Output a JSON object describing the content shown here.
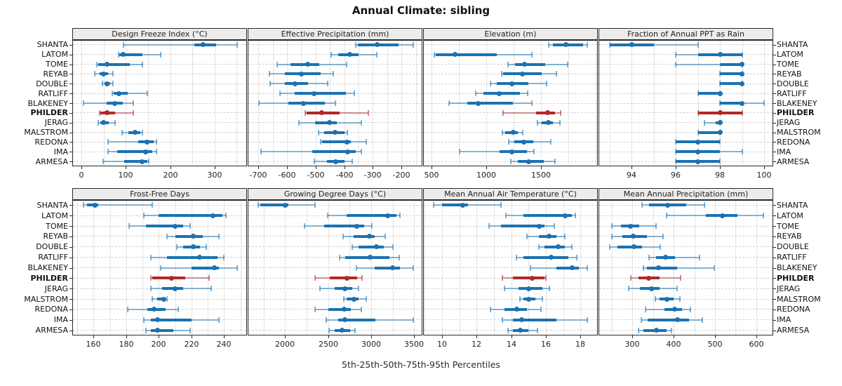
{
  "title": "Annual Climate: sibling",
  "xlabel": "5th-25th-50th-75th-95th Percentiles",
  "colors": {
    "series": "#1b72b2",
    "highlight": "#b02828",
    "strip_bg": "#ececec",
    "panel_border": "#2a2a2a",
    "grid": "#d2d2d2",
    "text": "#222222"
  },
  "stations": [
    "SHANTA",
    "LATOM",
    "TOME",
    "REYAB",
    "DOUBLE",
    "RATLIFF",
    "BLAKENEY",
    "PHILDER",
    "JERAG",
    "MALSTROM",
    "REDONA",
    "IMA",
    "ARMESA"
  ],
  "highlight_station": "PHILDER",
  "percentiles": [
    "5th",
    "25th",
    "50th",
    "75th",
    "95th"
  ],
  "chart_data": {
    "type": "dot-whisker percentile trellis (5-25-50-75-95)",
    "layout": "2 rows x 4 columns, shared station y-axis, grid on, station labels on both sides",
    "panels": [
      {
        "title": "Design Freeze Index (°C)",
        "ticks": [
          0,
          100,
          200,
          300
        ],
        "minor_step": 50,
        "range": [
          -21,
          373
        ],
        "values": {
          "SHANTA": [
            95,
            254,
            274,
            304,
            351
          ],
          "LATOM": [
            83,
            85,
            93,
            138,
            178
          ],
          "TOME": [
            35,
            38,
            58,
            109,
            137
          ],
          "REYAB": [
            29,
            41,
            50,
            59,
            71
          ],
          "DOUBLE": [
            47,
            51,
            58,
            65,
            70
          ],
          "RATLIFF": [
            69,
            72,
            84,
            104,
            149
          ],
          "BLAKENEY": [
            5,
            56,
            75,
            93,
            117
          ],
          "PHILDER": [
            40,
            43,
            57,
            75,
            116
          ],
          "JERAG": [
            37,
            42,
            50,
            62,
            76
          ],
          "MALSTROM": [
            91,
            105,
            121,
            133,
            137
          ],
          "REDONA": [
            60,
            128,
            148,
            162,
            169
          ],
          "IMA": [
            59,
            80,
            145,
            159,
            169
          ],
          "ARMESA": [
            49,
            96,
            137,
            149,
            151
          ]
        }
      },
      {
        "title": "Effective Precipitation (mm)",
        "ticks": [
          -700,
          -600,
          -500,
          -400,
          -300,
          -200
        ],
        "minor_step": 50,
        "range": [
          -737,
          -127
        ],
        "values": {
          "SHANTA": [
            -360,
            -352,
            -284,
            -210,
            -160
          ],
          "LATOM": [
            -445,
            -420,
            -380,
            -350,
            -287
          ],
          "TOME": [
            -633,
            -588,
            -528,
            -486,
            -392
          ],
          "REYAB": [
            -662,
            -608,
            -550,
            -482,
            -439
          ],
          "DOUBLE": [
            -658,
            -606,
            -572,
            -527,
            -457
          ],
          "RATLIFF": [
            -625,
            -572,
            -505,
            -393,
            -365
          ],
          "BLAKENEY": [
            -698,
            -594,
            -543,
            -467,
            -430
          ],
          "PHILDER": [
            -537,
            -531,
            -479,
            -417,
            -316
          ],
          "JERAG": [
            -559,
            -502,
            -452,
            -425,
            -339
          ],
          "MALSTROM": [
            -490,
            -470,
            -433,
            -400,
            -388
          ],
          "REDONA": [
            -482,
            -477,
            -390,
            -376,
            -322
          ],
          "IMA": [
            -690,
            -512,
            -389,
            -359,
            -340
          ],
          "ARMESA": [
            -504,
            -461,
            -430,
            -400,
            -373
          ]
        }
      },
      {
        "title": "Elevation (m)",
        "ticks": [
          500,
          1000,
          1500
        ],
        "minor_step": 250,
        "range": [
          420,
          2020
        ],
        "values": {
          "SHANTA": [
            1570,
            1610,
            1730,
            1885,
            1925
          ],
          "LATOM": [
            520,
            535,
            710,
            1095,
            1415
          ],
          "TOME": [
            1200,
            1260,
            1350,
            1535,
            1745
          ],
          "REYAB": [
            1140,
            1155,
            1330,
            1505,
            1640
          ],
          "DOUBLE": [
            1035,
            1095,
            1233,
            1387,
            1553
          ],
          "RATLIFF": [
            900,
            975,
            1120,
            1310,
            1375
          ],
          "BLAKENEY": [
            655,
            827,
            923,
            1245,
            1415
          ],
          "PHILDER": [
            1150,
            1457,
            1558,
            1628,
            1680
          ],
          "JERAG": [
            1465,
            1505,
            1565,
            1610,
            1670
          ],
          "MALSTROM": [
            1147,
            1173,
            1244,
            1286,
            1333
          ],
          "REDONA": [
            1205,
            1255,
            1345,
            1430,
            1590
          ],
          "IMA": [
            755,
            1120,
            1233,
            1372,
            1436
          ],
          "ARMESA": [
            1226,
            1286,
            1387,
            1526,
            1628
          ]
        }
      },
      {
        "title": "Fraction of Annual PPT as Rain",
        "ticks": [
          94,
          96,
          98,
          100
        ],
        "minor_step": 1,
        "range": [
          92.5,
          100.4
        ],
        "values": {
          "SHANTA": [
            93,
            93,
            94,
            95,
            97
          ],
          "LATOM": [
            96,
            97,
            98,
            99,
            99
          ],
          "TOME": [
            96,
            98,
            99,
            99,
            99
          ],
          "REYAB": [
            98,
            98,
            99,
            99,
            99
          ],
          "DOUBLE": [
            98,
            98,
            99,
            99,
            99
          ],
          "RATLIFF": [
            97,
            97,
            98,
            98,
            98
          ],
          "BLAKENEY": [
            98,
            98,
            99,
            99,
            100
          ],
          "PHILDER": [
            97,
            97,
            98,
            99,
            99
          ],
          "JERAG": [
            97.3,
            97.8,
            98,
            98,
            98
          ],
          "MALSTROM": [
            97,
            97,
            98,
            98,
            98
          ],
          "REDONA": [
            96,
            96,
            97,
            98,
            98
          ],
          "IMA": [
            96,
            96,
            97,
            98,
            99
          ],
          "ARMESA": [
            96,
            96,
            97,
            98,
            98
          ]
        }
      },
      {
        "title": "Frost-Free Days",
        "ticks": [
          160,
          180,
          200,
          220,
          240
        ],
        "minor_step": 10,
        "range": [
          147,
          254
        ],
        "values": {
          "SHANTA": [
            154,
            156,
            161,
            163,
            196
          ],
          "LATOM": [
            191,
            200,
            233,
            239,
            241
          ],
          "TOME": [
            182,
            192,
            210,
            215,
            219
          ],
          "REYAB": [
            205,
            210,
            221,
            227,
            237
          ],
          "DOUBLE": [
            211,
            215,
            221,
            225,
            229
          ],
          "RATLIFF": [
            195,
            205,
            225,
            236,
            240
          ],
          "BLAKENEY": [
            201,
            220,
            234,
            237,
            248
          ],
          "PHILDER": [
            195,
            196,
            208,
            216,
            231
          ],
          "JERAG": [
            195,
            202,
            210,
            215,
            232
          ],
          "MALSTROM": [
            196,
            199,
            203,
            204,
            205
          ],
          "REDONA": [
            181,
            193,
            197,
            204,
            212
          ],
          "IMA": [
            191,
            195,
            199,
            220,
            237
          ],
          "ARMESA": [
            192,
            195,
            199,
            209,
            219
          ]
        }
      },
      {
        "title": "Growing Degree Days (°C)",
        "ticks": [
          2000,
          2500,
          3000,
          3500
        ],
        "minor_step": 250,
        "range": [
          1565,
          3595
        ],
        "values": {
          "SHANTA": [
            1690,
            1710,
            2000,
            2035,
            2345
          ],
          "LATOM": [
            2495,
            2712,
            3190,
            3296,
            3337
          ],
          "TOME": [
            2225,
            2455,
            2835,
            2915,
            3010
          ],
          "REYAB": [
            2677,
            2793,
            2978,
            3038,
            3160
          ],
          "DOUBLE": [
            2780,
            2856,
            3065,
            3147,
            3255
          ],
          "RATLIFF": [
            2630,
            2698,
            2984,
            3209,
            3323
          ],
          "BLAKENEY": [
            2829,
            3038,
            3247,
            3337,
            3486
          ],
          "PHILDER": [
            2345,
            2522,
            2720,
            2834,
            2897
          ],
          "JERAG": [
            2405,
            2576,
            2693,
            2780,
            2856
          ],
          "MALSTROM": [
            2685,
            2712,
            2802,
            2856,
            2943
          ],
          "REDONA": [
            2345,
            2503,
            2685,
            2766,
            2883
          ],
          "IMA": [
            2476,
            2617,
            2698,
            3046,
            3486
          ],
          "ARMESA": [
            2514,
            2576,
            2658,
            2758,
            2812
          ]
        }
      },
      {
        "title": "Mean Annual Air Temperature (°C)",
        "ticks": [
          10,
          12,
          14,
          16,
          18
        ],
        "minor_step": 1,
        "range": [
          8.9,
          19.0
        ],
        "values": {
          "SHANTA": [
            9.5,
            10.0,
            11.2,
            11.5,
            13.4
          ],
          "LATOM": [
            13.7,
            14.7,
            17.1,
            17.5,
            17.7
          ],
          "TOME": [
            12.7,
            13.4,
            15.6,
            15.9,
            16.5
          ],
          "REYAB": [
            14.9,
            15.6,
            16.2,
            16.6,
            17.1
          ],
          "DOUBLE": [
            15.6,
            15.9,
            16.7,
            17.1,
            17.5
          ],
          "RATLIFF": [
            14.3,
            14.7,
            16.3,
            17.3,
            17.8
          ],
          "BLAKENEY": [
            15.1,
            16.6,
            17.5,
            17.9,
            18.4
          ],
          "PHILDER": [
            13.5,
            14.1,
            15.2,
            15.9,
            16.0
          ],
          "JERAG": [
            13.6,
            14.4,
            15.0,
            15.8,
            16.2
          ],
          "MALSTROM": [
            14.5,
            14.7,
            15.0,
            15.4,
            15.8
          ],
          "REDONA": [
            12.8,
            13.6,
            14.3,
            14.9,
            15.7
          ],
          "IMA": [
            13.5,
            14.1,
            14.6,
            16.6,
            18.4
          ],
          "ARMESA": [
            13.8,
            14.1,
            14.5,
            15.0,
            15.5
          ]
        }
      },
      {
        "title": "Mean Annual Precipitation (mm)",
        "ticks": [
          300,
          400,
          500,
          600
        ],
        "minor_step": 50,
        "range": [
          218,
          641
        ],
        "values": {
          "SHANTA": [
            324,
            340,
            385,
            430,
            474
          ],
          "LATOM": [
            382,
            478,
            518,
            555,
            618
          ],
          "TOME": [
            251,
            273,
            296,
            317,
            358
          ],
          "REYAB": [
            251,
            275,
            302,
            335,
            374
          ],
          "DOUBLE": [
            245,
            264,
            304,
            324,
            368
          ],
          "RATLIFF": [
            340,
            357,
            380,
            403,
            462
          ],
          "BLAKENEY": [
            326,
            336,
            364,
            409,
            498
          ],
          "PHILDER": [
            296,
            314,
            340,
            365,
            417
          ],
          "JERAG": [
            291,
            318,
            347,
            365,
            408
          ],
          "MALSTROM": [
            355,
            365,
            384,
            400,
            415
          ],
          "REDONA": [
            332,
            378,
            403,
            420,
            440
          ],
          "IMA": [
            321,
            337,
            409,
            437,
            470
          ],
          "ARMESA": [
            314,
            327,
            358,
            383,
            395
          ]
        }
      }
    ]
  }
}
